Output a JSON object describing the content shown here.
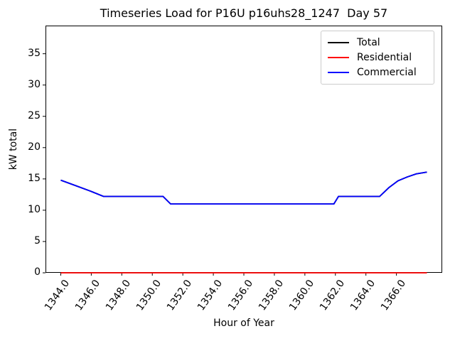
{
  "title": "Timeseries Load for P16U p16uhs28_1247  Day 57",
  "chart_data": {
    "type": "line",
    "title": "Timeseries Load for P16U p16uhs28_1247  Day 57",
    "xlabel": "Hour of Year",
    "ylabel": "kW total",
    "xlim": [
      1343,
      1369
    ],
    "ylim": [
      0,
      39.5
    ],
    "grid": false,
    "xticks": [
      1344,
      1346,
      1348,
      1350,
      1352,
      1354,
      1356,
      1358,
      1360,
      1362,
      1364,
      1366
    ],
    "xtick_labels": [
      "1344.0",
      "1346.0",
      "1348.0",
      "1350.0",
      "1352.0",
      "1354.0",
      "1356.0",
      "1358.0",
      "1360.0",
      "1362.0",
      "1364.0",
      "1366.0"
    ],
    "yticks": [
      0,
      5,
      10,
      15,
      20,
      25,
      30,
      35
    ],
    "ytick_labels": [
      "0",
      "5",
      "10",
      "15",
      "20",
      "25",
      "30",
      "35"
    ],
    "legend": {
      "position": "upper right",
      "entries": [
        {
          "label": "Total",
          "color": "#000000"
        },
        {
          "label": "Residential",
          "color": "#ff0000"
        },
        {
          "label": "Commercial",
          "color": "#0000ff"
        }
      ]
    },
    "series": [
      {
        "name": "Total",
        "color": "#000000",
        "points": [
          [
            1344.0,
            14.8
          ],
          [
            1345.0,
            13.9
          ],
          [
            1346.0,
            13.0
          ],
          [
            1346.8,
            12.2
          ],
          [
            1350.7,
            12.2
          ],
          [
            1351.2,
            11.0
          ],
          [
            1361.9,
            11.0
          ],
          [
            1362.2,
            12.2
          ],
          [
            1364.9,
            12.2
          ],
          [
            1365.5,
            13.6
          ],
          [
            1366.1,
            14.7
          ],
          [
            1366.7,
            15.3
          ],
          [
            1367.3,
            15.8
          ],
          [
            1368.0,
            16.1
          ]
        ]
      },
      {
        "name": "Residential",
        "color": "#ff0000",
        "points": [
          [
            1344.0,
            0.0
          ],
          [
            1368.0,
            0.0
          ]
        ]
      },
      {
        "name": "Commercial",
        "color": "#0000ff",
        "points": [
          [
            1344.0,
            14.8
          ],
          [
            1345.0,
            13.9
          ],
          [
            1346.0,
            13.0
          ],
          [
            1346.8,
            12.2
          ],
          [
            1350.7,
            12.2
          ],
          [
            1351.2,
            11.0
          ],
          [
            1361.9,
            11.0
          ],
          [
            1362.2,
            12.2
          ],
          [
            1364.9,
            12.2
          ],
          [
            1365.5,
            13.6
          ],
          [
            1366.1,
            14.7
          ],
          [
            1366.7,
            15.3
          ],
          [
            1367.3,
            15.8
          ],
          [
            1368.0,
            16.1
          ]
        ]
      }
    ]
  }
}
